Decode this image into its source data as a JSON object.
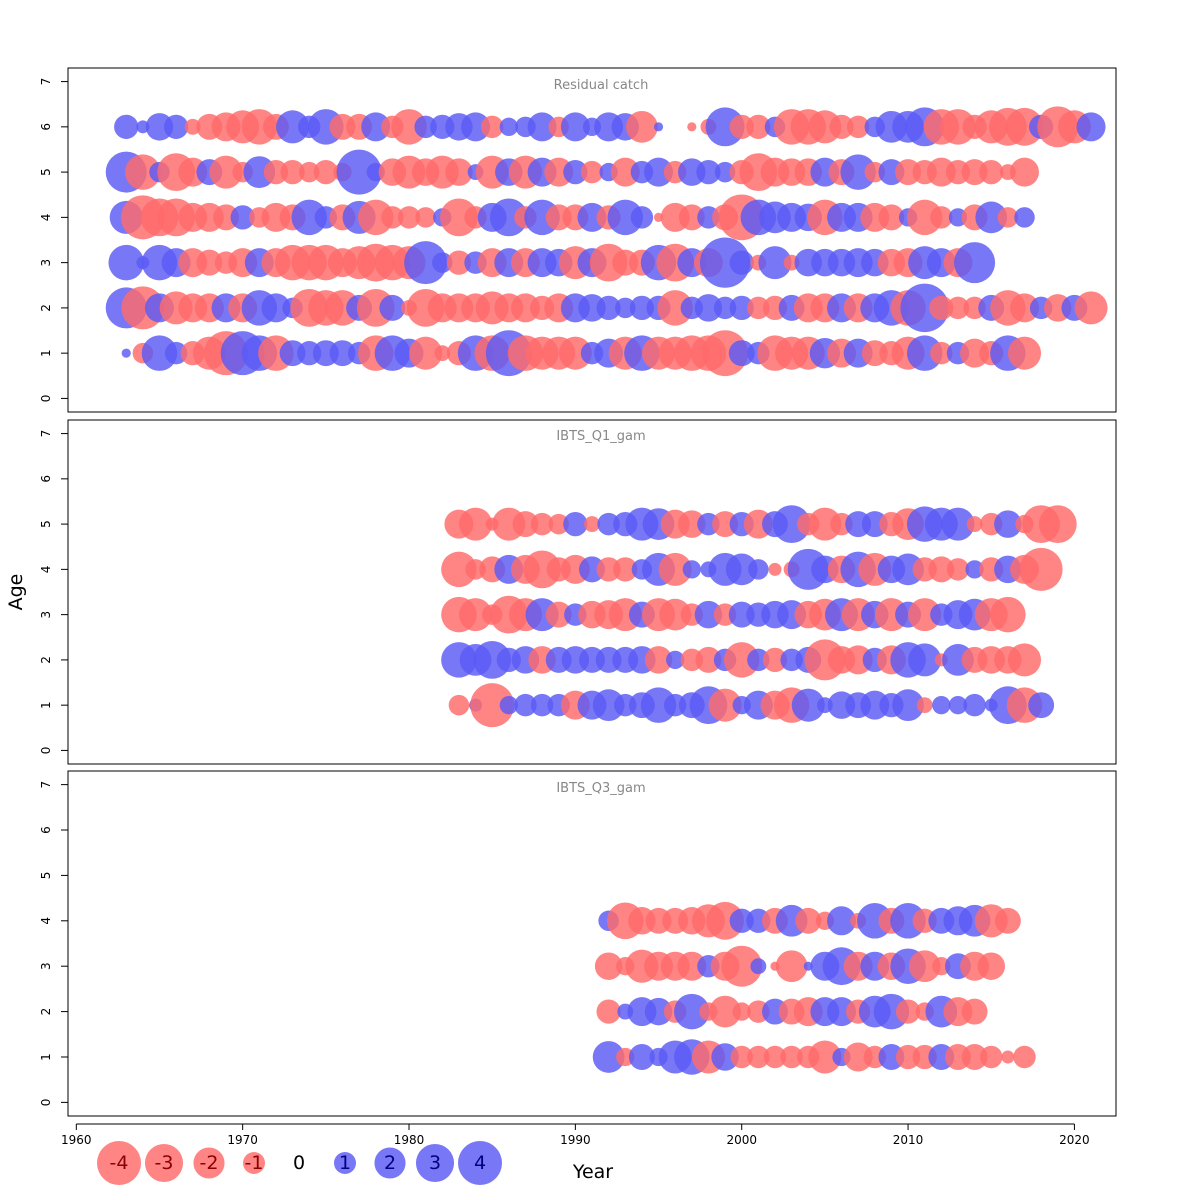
{
  "chart_data": {
    "type": "scatter",
    "subtype": "bubble-residual-plot",
    "xlabel": "Year",
    "ylabel": "Age",
    "xlim": [
      1959.5,
      2022.5
    ],
    "x_ticks": [
      1960,
      1970,
      1980,
      1990,
      2000,
      2010,
      2020
    ],
    "y_ticks": [
      0,
      1,
      2,
      3,
      4,
      5,
      6,
      7
    ],
    "colors": {
      "positive": "#5a5af5",
      "negative": "#ff6a6a"
    },
    "legend": {
      "position": "bottom-left",
      "values": [
        -4,
        -3,
        -2,
        -1,
        0,
        1,
        2,
        3,
        4
      ],
      "labels": [
        "-4",
        "-3",
        "-2",
        "-1",
        "0",
        "1",
        "2",
        "3",
        "4"
      ]
    },
    "panels": [
      {
        "title": "Residual catch",
        "ylim": [
          -0.3,
          7.3
        ],
        "start_year": 1963,
        "ages": [
          1,
          2,
          3,
          4,
          5,
          6
        ],
        "residuals": [
          [
            0.1,
            -0.5,
            1.5,
            0.6,
            -0.7,
            -1.3,
            -2.3,
            2.3,
            1.5,
            -1.5,
            0.8,
            0.7,
            0.8,
            0.8,
            0.6,
            -1.5,
            1.5,
            1.0,
            -1.3,
            -0.3,
            -0.7,
            1.5,
            -1.5,
            2.5,
            -1.5,
            -1.3,
            -1.3,
            -1.3,
            0.6,
            1.0,
            -1.3,
            1.5,
            -1.3,
            -1.3,
            -1.5,
            -1.5,
            -2.5,
            0.8,
            0.6,
            -1.5,
            -1.3,
            -1.3,
            1.1,
            -1.0,
            1.0,
            -0.8,
            -0.7,
            -1.3,
            1.5,
            -0.6,
            0.6,
            -1.0,
            -0.7,
            1.5,
            -1.3
          ],
          [
            2.0,
            -2.2,
            1.0,
            -1.3,
            -1.0,
            -1.0,
            1.0,
            -1.0,
            1.5,
            1.0,
            0.5,
            -1.7,
            -1.5,
            -1.5,
            0.8,
            -1.7,
            0.8,
            -0.3,
            -1.7,
            -1.0,
            -1.0,
            -1.0,
            -1.3,
            -1.0,
            -1.0,
            -0.7,
            -1.0,
            1.0,
            0.9,
            0.7,
            0.5,
            0.7,
            0.7,
            -1.5,
            0.6,
            0.9,
            0.6,
            0.7,
            -0.6,
            -0.7,
            0.8,
            -1.0,
            -1.0,
            1.0,
            -1.0,
            1.0,
            1.5,
            -1.5,
            2.8,
            -0.7,
            -0.6,
            -0.6,
            0.8,
            -1.5,
            -1.0,
            0.6,
            -0.9,
            0.8,
            -1.3
          ],
          [
            1.5,
            0.2,
            1.5,
            1.0,
            -1.0,
            -0.8,
            -0.6,
            -1.0,
            1.0,
            -1.0,
            -1.5,
            -1.5,
            -1.5,
            -1.0,
            -1.3,
            -1.7,
            -1.5,
            -1.3,
            2.2,
            0.5,
            -0.7,
            0.6,
            -1.0,
            1.0,
            -1.0,
            1.0,
            0.9,
            -1.3,
            1.0,
            -1.7,
            -0.8,
            -0.8,
            1.5,
            -1.7,
            1.0,
            -1.0,
            3.0,
            0.7,
            -0.3,
            1.3,
            -0.3,
            0.9,
            0.9,
            0.9,
            1.0,
            0.9,
            -0.9,
            -1.0,
            1.3,
            1.0,
            -1.0,
            2.0
          ],
          [
            1.3,
            -2.3,
            -1.7,
            -1.7,
            -1.0,
            -1.0,
            -0.8,
            0.7,
            -0.5,
            -1.0,
            -0.8,
            1.5,
            0.6,
            -0.8,
            1.3,
            -1.5,
            -0.6,
            -0.6,
            -0.5,
            0.4,
            -1.7,
            -0.6,
            1.0,
            1.7,
            -0.6,
            1.5,
            -0.8,
            -0.8,
            1.0,
            -0.7,
            1.5,
            0.6,
            -0.1,
            -1.0,
            -0.8,
            0.6,
            -0.8,
            -2.5,
            1.5,
            1.2,
            1.0,
            0.9,
            -1.5,
            1.0,
            1.0,
            -1.0,
            -0.8,
            0.4,
            -1.5,
            -0.6,
            0.4,
            -0.8,
            1.2,
            -0.5,
            0.5
          ],
          [
            2.0,
            -1.5,
            0.5,
            -1.7,
            -1.0,
            0.8,
            -1.3,
            -0.5,
            1.2,
            -0.7,
            -0.7,
            -0.5,
            -0.7,
            -0.4,
            2.4,
            0.4,
            -0.9,
            -1.3,
            -0.9,
            -1.3,
            -0.9,
            0.3,
            -1.3,
            0.9,
            -1.3,
            1.0,
            -1.0,
            0.7,
            -0.6,
            0.4,
            -1.0,
            0.6,
            1.0,
            -0.6,
            0.9,
            0.7,
            0.5,
            -0.7,
            -1.7,
            -1.0,
            -0.9,
            -0.9,
            1.0,
            -0.8,
            1.5,
            -0.5,
            0.8,
            -0.8,
            -0.7,
            -1.0,
            -0.7,
            -0.8,
            -0.7,
            -0.3,
            -1.0
          ],
          [
            0.7,
            0.2,
            0.9,
            0.7,
            -0.3,
            -0.8,
            -1.0,
            -1.3,
            -1.5,
            -0.8,
            1.3,
            0.6,
            1.5,
            -0.8,
            -0.8,
            1.0,
            -0.6,
            -1.5,
            0.6,
            0.7,
            0.9,
            1.0,
            -0.6,
            0.4,
            0.5,
            1.0,
            -0.5,
            1.0,
            0.4,
            1.0,
            0.9,
            -1.2,
            0.1,
            0.0,
            -0.1,
            -0.3,
            1.8,
            -0.7,
            -0.7,
            0.5,
            -1.5,
            -1.5,
            -1.3,
            -0.7,
            -0.6,
            0.5,
            1.2,
            1.2,
            1.8,
            -1.5,
            -1.5,
            -0.7,
            -1.3,
            -1.7,
            -1.7,
            0.7,
            -2.0,
            -1.3,
            1.0
          ]
        ]
      },
      {
        "title": "IBTS_Q1_gam",
        "ylim": [
          -0.3,
          7.3
        ],
        "start_year": 1983,
        "ages": [
          1,
          2,
          3,
          4,
          5
        ],
        "residuals": [
          [
            -0.5,
            0.2,
            -2.3,
            0.4,
            0.6,
            0.6,
            0.6,
            -1.0,
            1.0,
            1.2,
            0.6,
            0.8,
            1.5,
            0.6,
            0.8,
            1.7,
            -1.3,
            0.4,
            1.0,
            -1.0,
            -1.5,
            1.3,
            0.3,
            0.9,
            0.8,
            1.0,
            0.7,
            1.2,
            -0.3,
            0.4,
            0.4,
            0.6,
            0.2,
            1.7,
            -1.5,
            0.8
          ],
          [
            1.5,
            1.2,
            1.7,
            0.7,
            0.9,
            -0.9,
            0.8,
            0.9,
            0.8,
            0.8,
            0.8,
            0.9,
            -0.9,
            0.4,
            -0.6,
            -0.8,
            0.6,
            -1.5,
            0.6,
            -0.7,
            0.6,
            0.8,
            -2.0,
            -0.9,
            -1.0,
            0.7,
            -1.0,
            1.5,
            1.3,
            -0.2,
            1.2,
            -0.8,
            -0.9,
            -0.9,
            -1.3
          ],
          [
            -1.5,
            -1.3,
            -0.5,
            -1.7,
            -1.3,
            1.3,
            -0.8,
            0.6,
            -0.9,
            -1.0,
            -1.3,
            0.8,
            -1.3,
            -1.2,
            -0.6,
            0.9,
            -0.6,
            0.8,
            0.7,
            0.9,
            1.0,
            -0.9,
            -1.2,
            1.3,
            -1.3,
            0.9,
            -1.3,
            0.8,
            -1.3,
            0.6,
            1.0,
            1.2,
            -1.3,
            -1.5
          ],
          [
            -1.5,
            -0.5,
            -0.8,
            1.0,
            -1.0,
            -1.7,
            -0.7,
            -1.0,
            0.8,
            -0.7,
            -0.7,
            0.5,
            1.3,
            -1.3,
            0.4,
            0.3,
            1.3,
            1.2,
            0.5,
            -0.2,
            -0.3,
            2.0,
            0.9,
            -0.9,
            1.5,
            -1.3,
            0.9,
            1.2,
            -0.7,
            -0.8,
            -0.6,
            0.4,
            -0.7,
            0.9,
            -1.0,
            -2.2
          ],
          [
            -1.0,
            -1.3,
            -0.2,
            -1.3,
            -0.8,
            -0.6,
            -0.5,
            0.7,
            -0.3,
            0.6,
            0.7,
            1.3,
            1.2,
            -1.0,
            -0.9,
            0.6,
            -0.8,
            0.7,
            -1.0,
            0.8,
            1.7,
            -0.6,
            -1.3,
            -0.6,
            0.8,
            0.8,
            -0.7,
            -1.2,
            1.5,
            1.3,
            1.3,
            -0.3,
            -0.6,
            0.9,
            -0.4,
            -1.7,
            -1.7
          ]
        ]
      },
      {
        "title": "IBTS_Q3_gam",
        "ylim": [
          -0.3,
          7.3
        ],
        "start_year": 1992,
        "ages": [
          1,
          2,
          3,
          4
        ],
        "residuals": [
          [
            1.2,
            -0.4,
            0.8,
            0.4,
            1.3,
            1.5,
            -1.3,
            0.9,
            -0.6,
            -0.6,
            -0.6,
            -0.6,
            -0.6,
            -1.3,
            0.4,
            -1.0,
            -0.6,
            0.8,
            -0.7,
            -0.7,
            0.8,
            -0.8,
            -0.8,
            -0.6,
            -0.2,
            -0.6
          ],
          [
            -0.7,
            0.3,
            1.0,
            0.9,
            -0.6,
            1.5,
            -0.4,
            -1.2,
            -0.4,
            -0.6,
            0.8,
            -0.8,
            -1.0,
            1.0,
            1.0,
            -0.7,
            1.2,
            1.5,
            -0.7,
            -0.4,
            1.2,
            -1.0,
            -0.8
          ],
          [
            -0.9,
            -0.4,
            -1.3,
            -1.0,
            -1.0,
            -1.0,
            0.6,
            -1.0,
            -2.0,
            0.3,
            -0.1,
            -1.2,
            0.1,
            1.0,
            1.7,
            -1.0,
            1.0,
            -0.9,
            1.5,
            -1.2,
            -0.4,
            0.8,
            -1.0,
            -0.9
          ],
          [
            0.5,
            -1.6,
            -0.9,
            -0.8,
            -0.8,
            -0.9,
            -1.3,
            -1.7,
            0.7,
            0.7,
            -0.8,
            1.2,
            -0.8,
            -0.4,
            1.0,
            -0.3,
            1.5,
            -0.8,
            1.5,
            -0.7,
            0.8,
            1.0,
            1.2,
            -1.3,
            -0.8
          ]
        ]
      }
    ]
  }
}
